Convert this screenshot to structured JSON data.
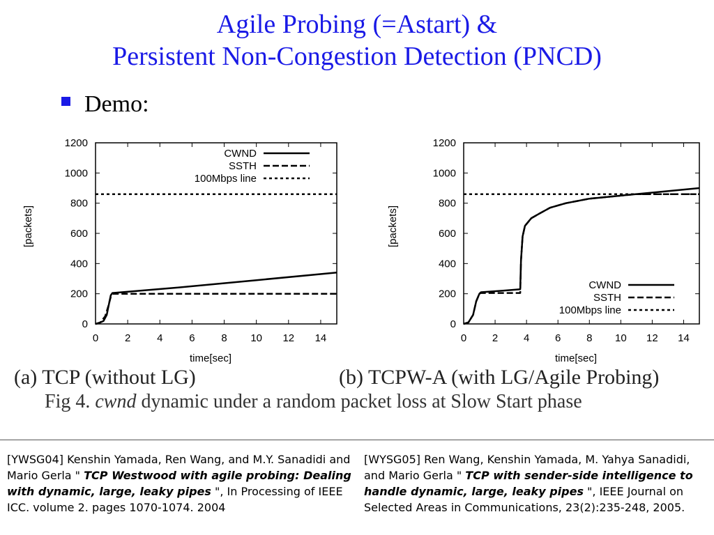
{
  "slide": {
    "title_line1": "Agile Probing (=Astart) &",
    "title_line2": "Persistent Non-Congestion Detection (PNCD)",
    "bullet": "Demo:",
    "caption_a": "(a) TCP (without LG)",
    "caption_b": "(b) TCPW-A (with LG/Agile Probing)",
    "fig_prefix": "Fig 4.",
    "fig_italic": "cwnd",
    "fig_rest": "dynamic under a random packet loss at Slow Start phase",
    "colors": {
      "title": "#1a1ae6",
      "bullet": "#1a1ae6"
    }
  },
  "references": [
    {
      "pre": "[YWSG04] Kenshin Yamada, Ren Wang, and M.Y. Sanadidi and Mario Gerla \" ",
      "title": "TCP Westwood with agile probing: Dealing with dynamic, large, leaky pipes",
      "post": " \", In Processing of IEEE ICC. volume 2. pages 1070-1074. 2004"
    },
    {
      "pre": "[WYSG05] Ren Wang, Kenshin Yamada, M. Yahya Sanadidi, and Mario Gerla \" ",
      "title": "TCP with sender-side intelligence to handle dynamic, large, leaky pipes",
      "post": " \", IEEE Journal on Selected Areas in Communications, 23(2):235-248, 2005."
    }
  ],
  "chart_data": [
    {
      "type": "line",
      "xlabel": "time[sec]",
      "ylabel": "[packets]",
      "xlim": [
        0,
        15
      ],
      "ylim": [
        0,
        1200
      ],
      "xticks": [
        0,
        2,
        4,
        6,
        8,
        10,
        12,
        14
      ],
      "yticks": [
        0,
        200,
        400,
        600,
        800,
        1000,
        1200
      ],
      "legend_position": "top-right",
      "series": [
        {
          "name": "CWND",
          "style": "solid",
          "x": [
            0,
            0.2,
            0.5,
            0.7,
            0.85,
            0.95,
            1.05,
            5,
            10,
            15
          ],
          "y": [
            0,
            5,
            20,
            60,
            140,
            190,
            205,
            240,
            290,
            340
          ]
        },
        {
          "name": "SSTH",
          "style": "dashed",
          "x": [
            0,
            0.3,
            0.6,
            0.8,
            0.95,
            1.1,
            15
          ],
          "y": [
            0,
            10,
            50,
            120,
            180,
            200,
            200
          ]
        },
        {
          "name": "100Mbps line",
          "style": "dotted",
          "x": [
            0,
            15
          ],
          "y": [
            860,
            860
          ]
        }
      ]
    },
    {
      "type": "line",
      "xlabel": "time[sec]",
      "ylabel": "[packets]",
      "xlim": [
        0,
        15
      ],
      "ylim": [
        0,
        1200
      ],
      "xticks": [
        0,
        2,
        4,
        6,
        8,
        10,
        12,
        14
      ],
      "yticks": [
        0,
        200,
        400,
        600,
        800,
        1000,
        1200
      ],
      "legend_position": "bottom-right",
      "series": [
        {
          "name": "CWND",
          "style": "solid",
          "x": [
            0,
            0.3,
            0.6,
            0.8,
            1.0,
            1.1,
            2.5,
            3.6,
            3.65,
            3.75,
            3.9,
            4.3,
            4.8,
            5.5,
            6.5,
            8,
            10,
            12,
            15
          ],
          "y": [
            0,
            10,
            60,
            150,
            200,
            210,
            220,
            230,
            420,
            580,
            650,
            700,
            730,
            770,
            800,
            830,
            850,
            870,
            900
          ]
        },
        {
          "name": "SSTH",
          "style": "dashed",
          "x": [
            0,
            0.3,
            0.6,
            0.8,
            1.0,
            1.1,
            3.6,
            3.65,
            3.75,
            3.9,
            4.3,
            4.8,
            5.5,
            6.5,
            8,
            10,
            11,
            15
          ],
          "y": [
            0,
            10,
            60,
            150,
            200,
            205,
            205,
            420,
            580,
            650,
            700,
            730,
            770,
            800,
            830,
            850,
            860,
            860
          ]
        },
        {
          "name": "100Mbps line",
          "style": "dotted",
          "x": [
            0,
            15
          ],
          "y": [
            860,
            860
          ]
        }
      ]
    }
  ]
}
